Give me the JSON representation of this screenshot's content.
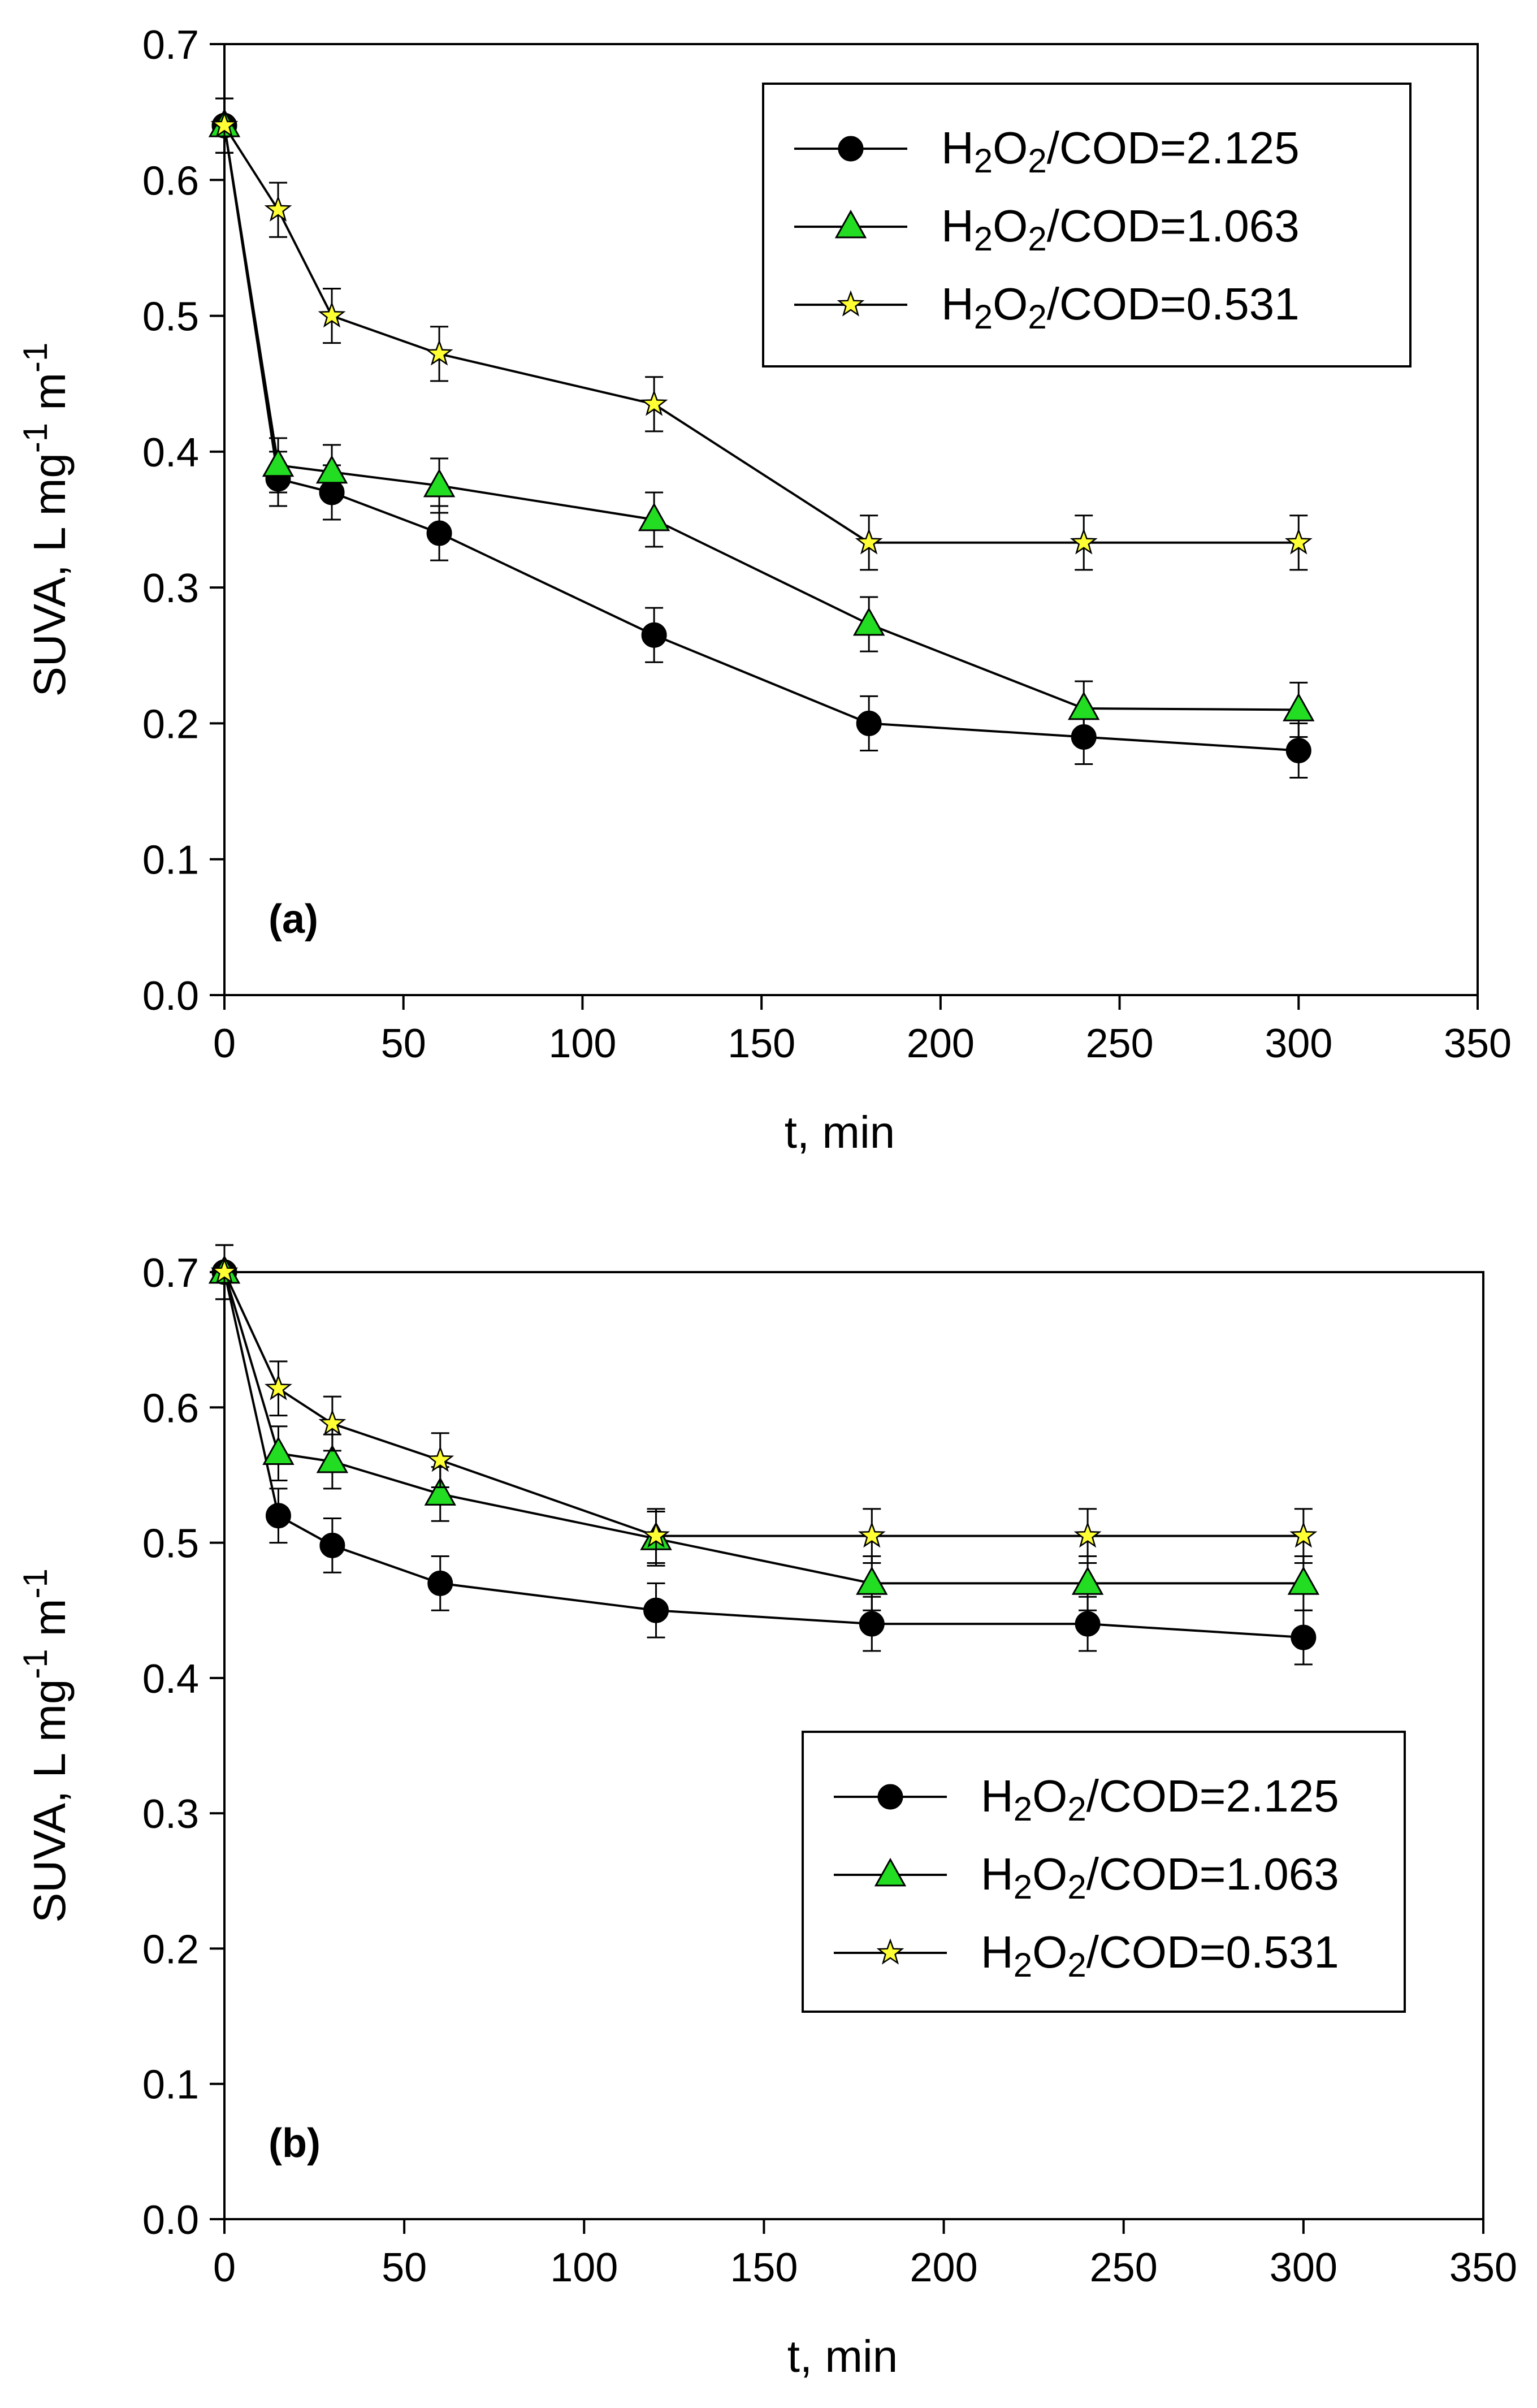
{
  "chart_data": [
    {
      "type": "line",
      "panel_label": "(a)",
      "xlabel": "t, min",
      "ylabel": "SUVA, L mg-1 m-1",
      "xlim": [
        0,
        350
      ],
      "ylim": [
        0.0,
        0.7
      ],
      "xticks": [
        0,
        50,
        100,
        150,
        200,
        250,
        300,
        350
      ],
      "yticks": [
        "0.0",
        "0.1",
        "0.2",
        "0.3",
        "0.4",
        "0.5",
        "0.6",
        "0.7"
      ],
      "error_bar": 0.02,
      "legend_position": "top-right",
      "series": [
        {
          "name": "H2O2/COD=2.125",
          "marker": "circle",
          "color": "#000000",
          "x": [
            0,
            15,
            30,
            60,
            120,
            180,
            240,
            300
          ],
          "y": [
            0.64,
            0.38,
            0.37,
            0.34,
            0.265,
            0.2,
            0.19,
            0.18
          ]
        },
        {
          "name": "H2O2/COD=1.063",
          "marker": "triangle",
          "color": "#22dd22",
          "x": [
            0,
            15,
            30,
            60,
            120,
            180,
            240,
            300
          ],
          "y": [
            0.64,
            0.39,
            0.385,
            0.375,
            0.35,
            0.273,
            0.211,
            0.21
          ]
        },
        {
          "name": "H2O2/COD=0.531",
          "marker": "star",
          "color": "#ffff33",
          "x": [
            0,
            15,
            30,
            60,
            120,
            180,
            240,
            300
          ],
          "y": [
            0.64,
            0.578,
            0.5,
            0.472,
            0.435,
            0.333,
            0.333,
            0.333
          ]
        }
      ]
    },
    {
      "type": "line",
      "panel_label": "(b)",
      "xlabel": "t, min",
      "ylabel": "SUVA, L mg-1 m-1",
      "xlim": [
        0,
        350
      ],
      "ylim": [
        0.0,
        0.7
      ],
      "xticks": [
        0,
        50,
        100,
        150,
        200,
        250,
        300,
        350
      ],
      "yticks": [
        "0.0",
        "0.1",
        "0.2",
        "0.3",
        "0.4",
        "0.5",
        "0.6",
        "0.7"
      ],
      "error_bar": 0.02,
      "legend_position": "center-right",
      "series": [
        {
          "name": "H2O2/COD=2.125",
          "marker": "circle",
          "color": "#000000",
          "x": [
            0,
            15,
            30,
            60,
            120,
            180,
            240,
            300
          ],
          "y": [
            0.7,
            0.52,
            0.498,
            0.47,
            0.45,
            0.44,
            0.44,
            0.43
          ]
        },
        {
          "name": "H2O2/COD=1.063",
          "marker": "triangle",
          "color": "#22dd22",
          "x": [
            0,
            15,
            30,
            60,
            120,
            180,
            240,
            300
          ],
          "y": [
            0.7,
            0.566,
            0.56,
            0.536,
            0.503,
            0.47,
            0.47,
            0.47
          ]
        },
        {
          "name": "H2O2/COD=0.531",
          "marker": "star",
          "color": "#ffff33",
          "x": [
            0,
            15,
            30,
            60,
            120,
            180,
            240,
            300
          ],
          "y": [
            0.7,
            0.614,
            0.588,
            0.561,
            0.505,
            0.505,
            0.505,
            0.505
          ]
        }
      ]
    }
  ]
}
